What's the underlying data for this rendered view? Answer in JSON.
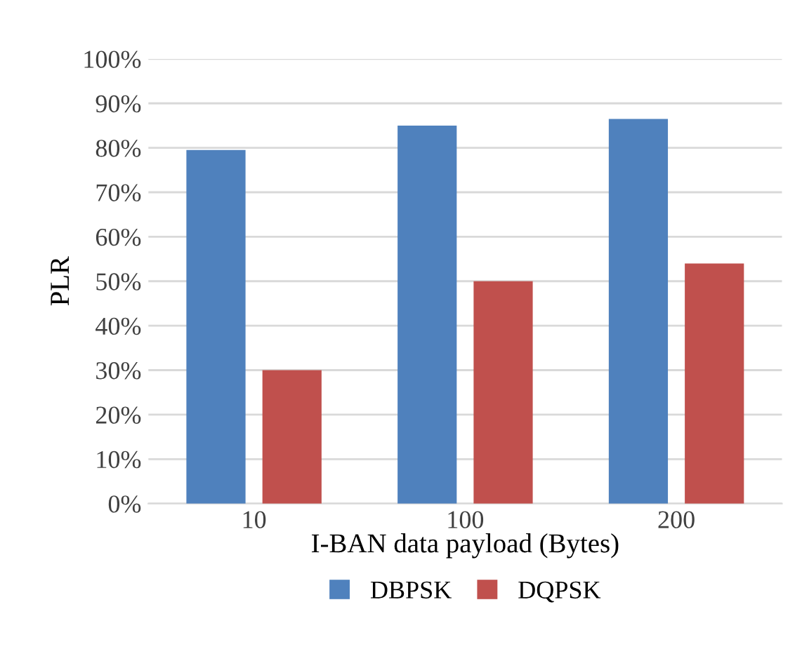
{
  "chart_data": {
    "type": "bar",
    "xlabel": "I-BAN data payload (Bytes)",
    "ylabel": "PLR",
    "categories": [
      "10",
      "100",
      "200"
    ],
    "series": [
      {
        "name": "DBPSK",
        "color": "#4f81bd",
        "values": [
          79.5,
          85,
          86.5
        ]
      },
      {
        "name": "DQPSK",
        "color": "#c0504d",
        "values": [
          30,
          50,
          54
        ]
      }
    ],
    "ylim": [
      0,
      100
    ],
    "yticks": [
      {
        "value": 0,
        "label": "0%"
      },
      {
        "value": 10,
        "label": "10%"
      },
      {
        "value": 20,
        "label": "20%"
      },
      {
        "value": 30,
        "label": "30%"
      },
      {
        "value": 40,
        "label": "40%"
      },
      {
        "value": 50,
        "label": "50%"
      },
      {
        "value": 60,
        "label": "60%"
      },
      {
        "value": 70,
        "label": "70%"
      },
      {
        "value": 80,
        "label": "80%"
      },
      {
        "value": 90,
        "label": "90%"
      },
      {
        "value": 100,
        "label": "100%"
      }
    ],
    "grid": "y",
    "legend": "bottom"
  }
}
